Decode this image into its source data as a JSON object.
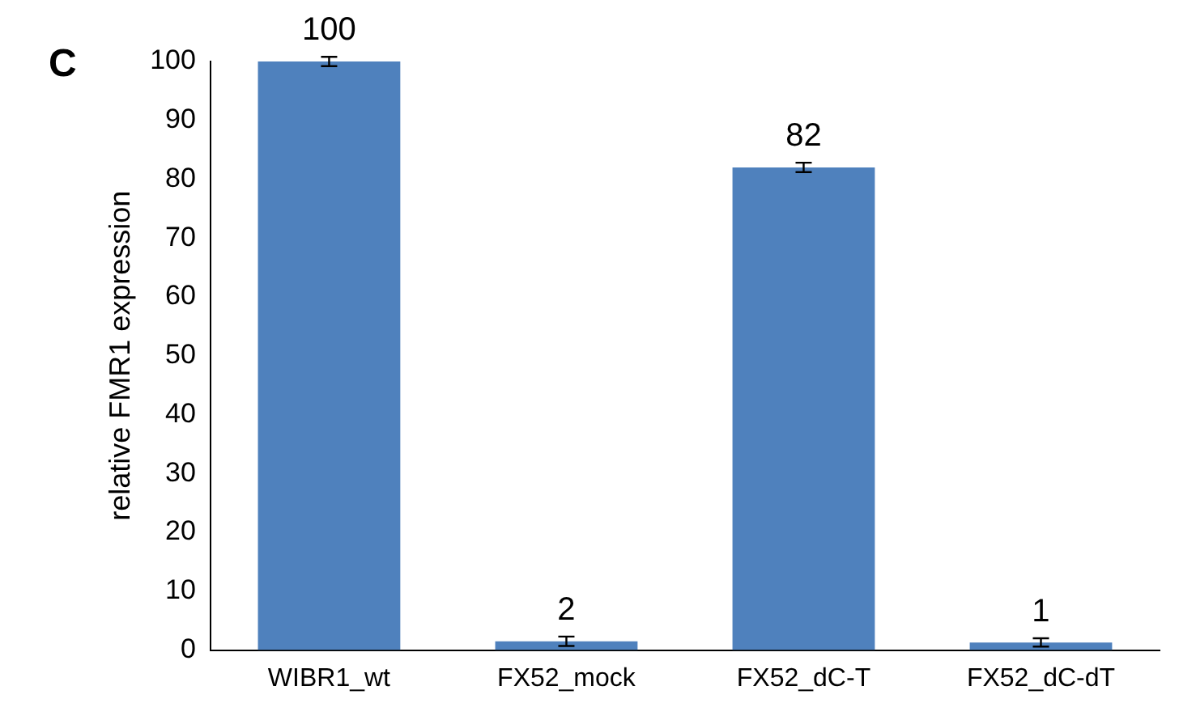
{
  "chart_data": {
    "type": "bar",
    "ylabel": "relative FMR1 expression",
    "annotations": [
      "C"
    ],
    "categories": [
      "WIBR1_wt",
      "FX52_mock",
      "FX52_dC-T",
      "FX52_dC-dT"
    ],
    "values": [
      100,
      1.5,
      82,
      1.3
    ],
    "errors": [
      0.8,
      0.8,
      0.8,
      0.7
    ],
    "value_labels": [
      "100",
      "2",
      "82",
      "1"
    ],
    "color": "#4f81bd",
    "ylim": [
      0,
      100
    ],
    "yticks": [
      0,
      10,
      20,
      30,
      40,
      50,
      60,
      70,
      80,
      90,
      100
    ],
    "grid": false,
    "legend": false
  }
}
